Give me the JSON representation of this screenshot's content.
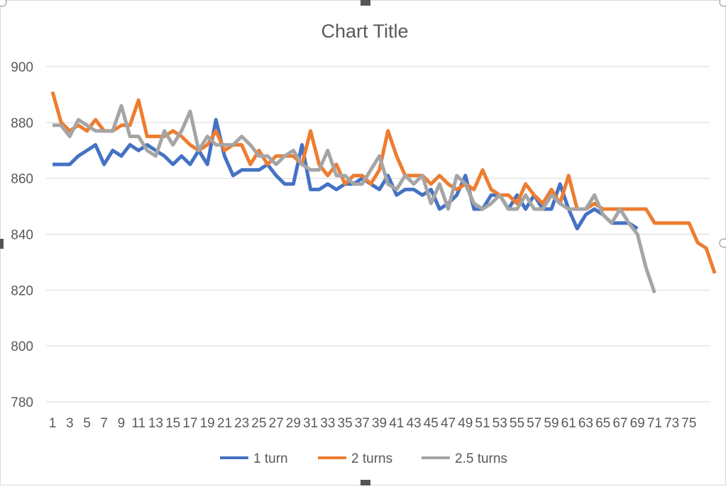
{
  "chart_data": {
    "type": "line",
    "title": "Chart Title",
    "xlabel": "",
    "ylabel": "",
    "ylim": [
      780,
      900
    ],
    "yticks": [
      780,
      800,
      820,
      840,
      860,
      880,
      900
    ],
    "xtick_labels": [
      "1",
      "3",
      "5",
      "7",
      "9",
      "11",
      "13",
      "15",
      "17",
      "19",
      "21",
      "23",
      "25",
      "27",
      "29",
      "31",
      "33",
      "35",
      "37",
      "39",
      "41",
      "43",
      "45",
      "47",
      "49",
      "51",
      "53",
      "55",
      "57",
      "59",
      "61",
      "63",
      "65",
      "67",
      "69",
      "71",
      "73",
      "75"
    ],
    "grid": true,
    "legend": "bottom",
    "series": [
      {
        "name": "1 turn",
        "color": "#4472C4",
        "values": [
          865,
          865,
          865,
          868,
          870,
          872,
          865,
          870,
          868,
          872,
          870,
          872,
          870,
          868,
          865,
          868,
          865,
          870,
          865,
          881,
          868,
          861,
          863,
          863,
          863,
          865,
          861,
          858,
          858,
          872,
          856,
          856,
          858,
          856,
          858,
          858,
          860,
          858,
          856,
          861,
          854,
          856,
          856,
          854,
          856,
          849,
          851,
          854,
          861,
          849,
          849,
          854,
          854,
          849,
          854,
          849,
          854,
          849,
          849,
          858,
          849,
          842,
          847,
          849,
          847,
          844,
          844,
          844,
          842
        ]
      },
      {
        "name": "2 turns",
        "color": "#ED7D31",
        "values": [
          891,
          880,
          877,
          879,
          877,
          881,
          877,
          877,
          879,
          879,
          888,
          875,
          875,
          875,
          877,
          875,
          872,
          870,
          872,
          877,
          870,
          872,
          872,
          865,
          870,
          865,
          868,
          868,
          868,
          865,
          877,
          865,
          861,
          865,
          858,
          861,
          861,
          858,
          863,
          877,
          868,
          861,
          861,
          861,
          858,
          861,
          858,
          856,
          858,
          856,
          863,
          856,
          854,
          854,
          851,
          858,
          854,
          851,
          856,
          851,
          861,
          849,
          849,
          851,
          849,
          849,
          849,
          849,
          849,
          849,
          844,
          844,
          844,
          844,
          844,
          837,
          835,
          826
        ]
      },
      {
        "name": "2.5 turns",
        "color": "#A5A5A5",
        "values": [
          879,
          879,
          875,
          881,
          879,
          877,
          877,
          877,
          886,
          875,
          875,
          870,
          868,
          877,
          872,
          877,
          884,
          870,
          875,
          872,
          872,
          872,
          875,
          872,
          868,
          868,
          865,
          868,
          870,
          865,
          863,
          863,
          870,
          861,
          861,
          858,
          858,
          863,
          868,
          858,
          856,
          861,
          858,
          861,
          851,
          858,
          849,
          861,
          858,
          851,
          849,
          851,
          854,
          849,
          849,
          854,
          849,
          849,
          854,
          851,
          849,
          849,
          849,
          854,
          847,
          844,
          849,
          844,
          840,
          828,
          819
        ]
      }
    ]
  }
}
